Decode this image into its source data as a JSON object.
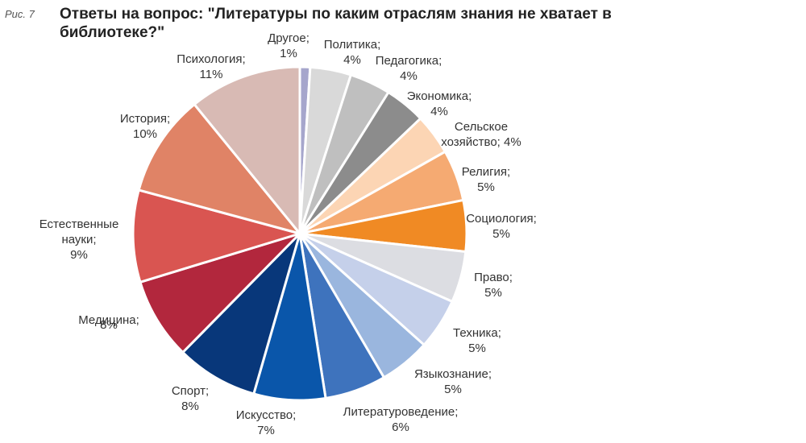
{
  "figure_label": "Рис. 7",
  "title": "Ответы на вопрос: \"Литературы по каким отраслям знания не хватает в библиотеке?\"",
  "chart_data": {
    "type": "pie",
    "title": "Ответы на вопрос: \"Литературы по каким отраслям знания не хватает в библиотеке?\"",
    "start": "12 o'clock",
    "direction": "clockwise",
    "slices": [
      {
        "label": [
          "Другое;",
          "1%"
        ],
        "value": 1,
        "color": "#a6a6cc"
      },
      {
        "label": [
          "Политика;",
          "4%"
        ],
        "value": 4,
        "color": "#d9d9d9"
      },
      {
        "label": [
          "Педагогика;",
          "4%"
        ],
        "value": 4,
        "color": "#bfbfbf"
      },
      {
        "label": [
          "Экономика;",
          "4%"
        ],
        "value": 4,
        "color": "#8c8c8c"
      },
      {
        "label": [
          "Сельское",
          "хозяйство; 4%"
        ],
        "value": 4,
        "color": "#fcd5b4"
      },
      {
        "label": [
          "Религия;",
          "5%"
        ],
        "value": 5,
        "color": "#f5aa72"
      },
      {
        "label": [
          "Социология;",
          "5%"
        ],
        "value": 5,
        "color": "#f08a24"
      },
      {
        "label": [
          "Право;",
          "5%"
        ],
        "value": 5,
        "color": "#dcdde2"
      },
      {
        "label": [
          "Техника;",
          "5%"
        ],
        "value": 5,
        "color": "#c5d0ea"
      },
      {
        "label": [
          "Языкознание;",
          "5%"
        ],
        "value": 5,
        "color": "#9ab6de"
      },
      {
        "label": [
          "Литературоведение;",
          "6%"
        ],
        "value": 6,
        "color": "#3e73bd"
      },
      {
        "label": [
          "Искусство;",
          "7%"
        ],
        "value": 7,
        "color": "#0a56aa"
      },
      {
        "label": [
          "Спорт;",
          "8%"
        ],
        "value": 8,
        "color": "#08377a"
      },
      {
        "label": [
          "Медицина;",
          "8%"
        ],
        "value": 8,
        "color": "#b2273d"
      },
      {
        "label": [
          "Естественные",
          "науки;",
          "9%"
        ],
        "value": 9,
        "color": "#d95551"
      },
      {
        "label": [
          "История;",
          "10%"
        ],
        "value": 10,
        "color": "#e08366"
      },
      {
        "label": [
          "Психология;",
          "11%"
        ],
        "value": 11,
        "color": "#d8bab4"
      }
    ]
  }
}
